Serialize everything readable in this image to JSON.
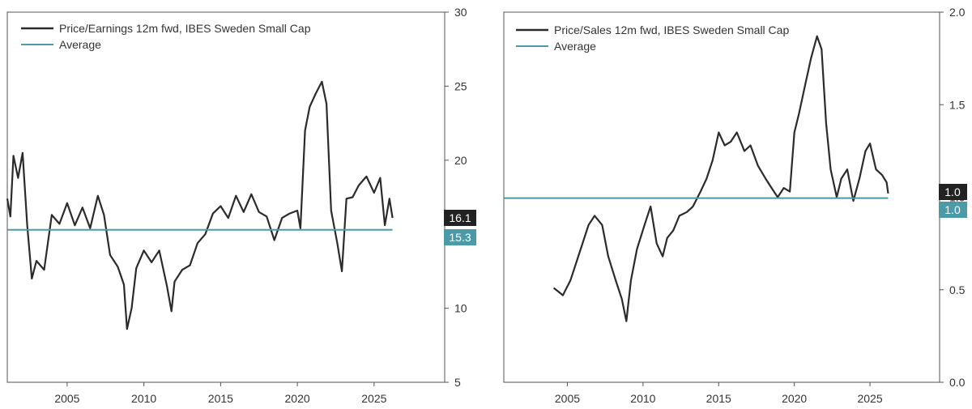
{
  "colors": {
    "series": "#2b2b2b",
    "average": "#4a9aa8",
    "badge_dark": "#222222",
    "badge_teal": "#4a9aa8",
    "axis": "#555555"
  },
  "chart_data": [
    {
      "type": "line",
      "title": "",
      "xlabel": "",
      "ylabel": "",
      "x_ticks": [
        "2005",
        "2010",
        "2015",
        "2020",
        "2025"
      ],
      "y_ticks": [
        "5",
        "10",
        "15",
        "20",
        "25",
        "30"
      ],
      "xlim": [
        2001.1,
        2029.6
      ],
      "ylim": [
        5,
        30
      ],
      "y_axis_side": "right",
      "legend_position": "top-left",
      "series": [
        {
          "name": "Price/Earnings 12m fwd, IBES Sweden Small Cap",
          "x": [
            2001.1,
            2001.3,
            2001.5,
            2001.8,
            2002.1,
            2002.4,
            2002.7,
            2003.0,
            2003.5,
            2004.0,
            2004.5,
            2005.0,
            2005.5,
            2006.0,
            2006.5,
            2007.0,
            2007.4,
            2007.8,
            2008.3,
            2008.7,
            2008.9,
            2009.2,
            2009.5,
            2010.0,
            2010.5,
            2011.0,
            2011.5,
            2011.8,
            2012.0,
            2012.5,
            2013.0,
            2013.5,
            2014.0,
            2014.5,
            2015.0,
            2015.5,
            2016.0,
            2016.5,
            2017.0,
            2017.5,
            2018.0,
            2018.5,
            2019.0,
            2019.5,
            2020.0,
            2020.2,
            2020.5,
            2020.8,
            2021.2,
            2021.6,
            2021.9,
            2022.2,
            2022.6,
            2022.9,
            2023.2,
            2023.6,
            2024.0,
            2024.5,
            2025.0,
            2025.4,
            2025.7,
            2026.0,
            2026.2
          ],
          "values": [
            17.4,
            16.2,
            20.3,
            18.8,
            20.5,
            15.6,
            12.0,
            13.2,
            12.6,
            16.3,
            15.7,
            17.1,
            15.6,
            16.8,
            15.4,
            17.6,
            16.3,
            13.6,
            12.8,
            11.6,
            8.6,
            10.0,
            12.7,
            13.9,
            13.1,
            13.9,
            11.5,
            9.8,
            11.8,
            12.6,
            12.9,
            14.4,
            15.0,
            16.4,
            16.9,
            16.1,
            17.6,
            16.5,
            17.7,
            16.5,
            16.2,
            14.6,
            16.1,
            16.4,
            16.6,
            15.4,
            22.0,
            23.6,
            24.5,
            25.3,
            23.8,
            16.6,
            14.4,
            12.5,
            17.4,
            17.5,
            18.3,
            18.9,
            17.8,
            18.8,
            15.6,
            17.4,
            16.1
          ]
        },
        {
          "name": "Average",
          "x": [
            2001.1,
            2026.2
          ],
          "values": [
            15.3,
            15.3
          ]
        }
      ],
      "end_labels": [
        "16.1",
        "15.3"
      ]
    },
    {
      "type": "line",
      "title": "",
      "xlabel": "",
      "ylabel": "",
      "x_ticks": [
        "2005",
        "2010",
        "2015",
        "2020",
        "2025"
      ],
      "y_ticks": [
        "0.0",
        "0.5",
        "1.0",
        "1.5",
        "2.0"
      ],
      "y_tick_values": [
        0,
        0.5,
        1.0,
        1.5,
        2.0
      ],
      "xlim": [
        2000.8,
        2029.6
      ],
      "ylim": [
        0,
        2.0
      ],
      "y_axis_side": "right",
      "legend_position": "top-left",
      "series": [
        {
          "name": "Price/Sales 12m fwd, IBES Sweden Small Cap",
          "x": [
            2004.1,
            2004.4,
            2004.7,
            2005.2,
            2005.8,
            2006.4,
            2006.8,
            2007.3,
            2007.7,
            2008.2,
            2008.6,
            2008.9,
            2009.2,
            2009.6,
            2010.1,
            2010.5,
            2010.9,
            2011.3,
            2011.6,
            2012.0,
            2012.4,
            2012.9,
            2013.3,
            2013.8,
            2014.2,
            2014.6,
            2015.0,
            2015.4,
            2015.8,
            2016.2,
            2016.7,
            2017.1,
            2017.6,
            2018.1,
            2018.5,
            2018.9,
            2019.3,
            2019.7,
            2020.0,
            2020.3,
            2020.7,
            2021.1,
            2021.5,
            2021.8,
            2022.1,
            2022.4,
            2022.8,
            2023.1,
            2023.5,
            2023.9,
            2024.3,
            2024.7,
            2025.0,
            2025.4,
            2025.8,
            2026.1,
            2026.2
          ],
          "values": [
            0.51,
            0.49,
            0.47,
            0.55,
            0.7,
            0.85,
            0.9,
            0.85,
            0.68,
            0.55,
            0.45,
            0.33,
            0.55,
            0.72,
            0.85,
            0.95,
            0.75,
            0.68,
            0.78,
            0.82,
            0.9,
            0.92,
            0.95,
            1.03,
            1.1,
            1.2,
            1.35,
            1.28,
            1.3,
            1.35,
            1.25,
            1.28,
            1.17,
            1.1,
            1.05,
            1.0,
            1.05,
            1.03,
            1.35,
            1.45,
            1.6,
            1.75,
            1.87,
            1.8,
            1.4,
            1.15,
            1.0,
            1.1,
            1.15,
            0.98,
            1.1,
            1.25,
            1.29,
            1.15,
            1.12,
            1.08,
            1.02
          ]
        },
        {
          "name": "Average",
          "x": [
            2000.8,
            2026.2
          ],
          "values": [
            0.995,
            0.995
          ]
        }
      ],
      "end_labels": [
        "1.0",
        "1.0"
      ]
    }
  ]
}
